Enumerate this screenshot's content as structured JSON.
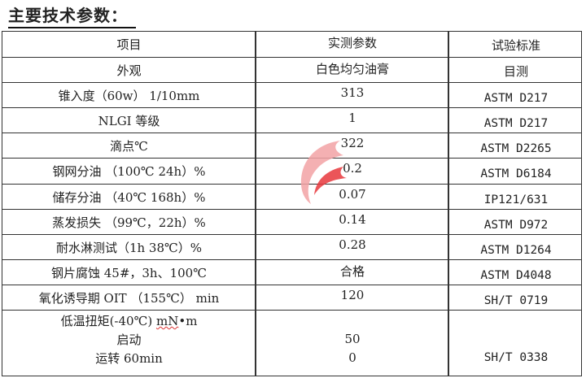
{
  "title": "主要技术参数：",
  "table": {
    "headers": [
      "项目",
      "实测参数",
      "试验标准"
    ],
    "rows": [
      {
        "item": "外观",
        "value": "白色均匀油膏",
        "standard": "目测"
      },
      {
        "item": "锥入度（60w） 1/10mm",
        "value": "313",
        "standard": "ASTM D217"
      },
      {
        "item": "NLGI 等级",
        "value": "1",
        "standard": "ASTM D217"
      },
      {
        "item": "滴点℃",
        "value": "322",
        "standard": "ASTM D2265"
      },
      {
        "item": "钢网分油  （100℃ 24h）%",
        "value": "0.2",
        "standard": "ASTM D6184"
      },
      {
        "item": "储存分油  （40℃ 168h）%",
        "value": "0.07",
        "standard": "IP121/631"
      },
      {
        "item": "蒸发损失  （99℃，22h）%",
        "value": "0.14",
        "standard": "ASTM D972"
      },
      {
        "item": "耐水淋测试（1h  38℃）%",
        "value": "0.28",
        "standard": "ASTM D1264"
      },
      {
        "item": "钢片腐蚀 45#，3h、100℃",
        "value": "合格",
        "standard": "ASTM D4048"
      },
      {
        "item": "氧化诱导期 OIT （155℃） min",
        "value": "120",
        "standard": "SH/T 0719"
      }
    ],
    "last_row": {
      "item_line1_prefix": "低温扭矩(-40℃) ",
      "item_line1_unit": "mN",
      "item_line1_suffix": "•m",
      "item_line2": "启动",
      "item_line3": "运转 60min",
      "value_start": "50",
      "value_run": "0",
      "standard": "SH/T 0338"
    }
  },
  "watermark": {
    "colors": [
      "#e8383d",
      "#f3a3a5"
    ]
  }
}
